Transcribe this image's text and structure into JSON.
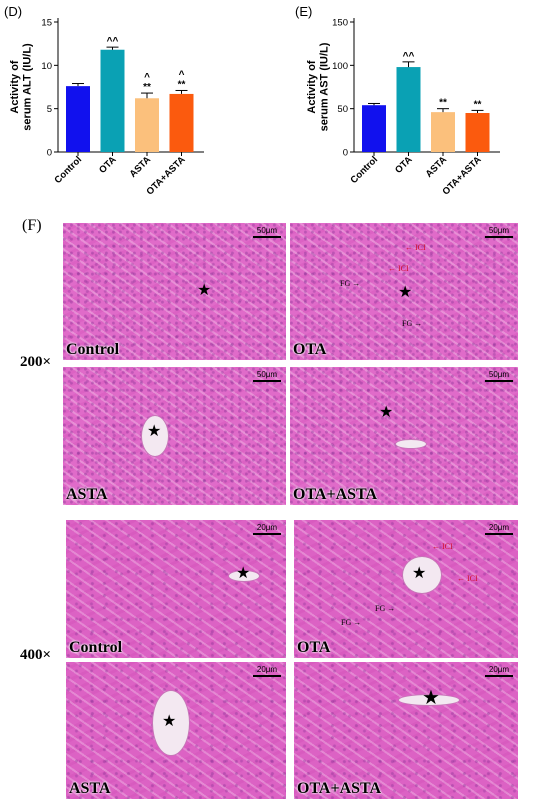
{
  "chart_data": [
    {
      "type": "bar",
      "panel": "(D)",
      "ylabel": "Activity of serum ALT (IU/L)",
      "ylabel_line1": "Activity of",
      "ylabel_line2": "serum ALT (IU/L)",
      "categories": [
        "Control",
        "OTA",
        "ASTA",
        "OTA+ASTA"
      ],
      "values": [
        7.6,
        11.8,
        6.2,
        6.7
      ],
      "errors": [
        0.3,
        0.3,
        0.6,
        0.4
      ],
      "colors": [
        "#1111ee",
        "#0aa1b4",
        "#fbc07c",
        "#fb5a0e"
      ],
      "annotations": [
        "",
        "^^",
        "^\n**",
        "^\n**"
      ],
      "ylim": [
        0,
        15
      ],
      "yticks": [
        0,
        5,
        10,
        15
      ]
    },
    {
      "type": "bar",
      "panel": "(E)",
      "ylabel": "Activity of serum AST (IU/L)",
      "ylabel_line1": "Activity of",
      "ylabel_line2": "serum AST (IU/L)",
      "categories": [
        "Control",
        "OTA",
        "ASTA",
        "OTA+ASTA"
      ],
      "values": [
        54,
        98,
        46,
        45
      ],
      "errors": [
        2,
        6,
        4,
        3
      ],
      "colors": [
        "#1111ee",
        "#0aa1b4",
        "#fbc07c",
        "#fb5a0e"
      ],
      "annotations": [
        "",
        "^^",
        "**",
        "**"
      ],
      "ylim": [
        0,
        150
      ],
      "yticks": [
        0,
        50,
        100,
        150
      ]
    }
  ],
  "figure": {
    "panel_f": "(F)",
    "mag_200": "200×",
    "mag_400": "400×",
    "scale_50": "50μm",
    "scale_20": "20μm",
    "group_control": "Control",
    "group_ota": "OTA",
    "group_asta": "ASTA",
    "group_ota_asta": "OTA+ASTA",
    "star": "★",
    "fg": "FG",
    "ici": "ICI"
  }
}
